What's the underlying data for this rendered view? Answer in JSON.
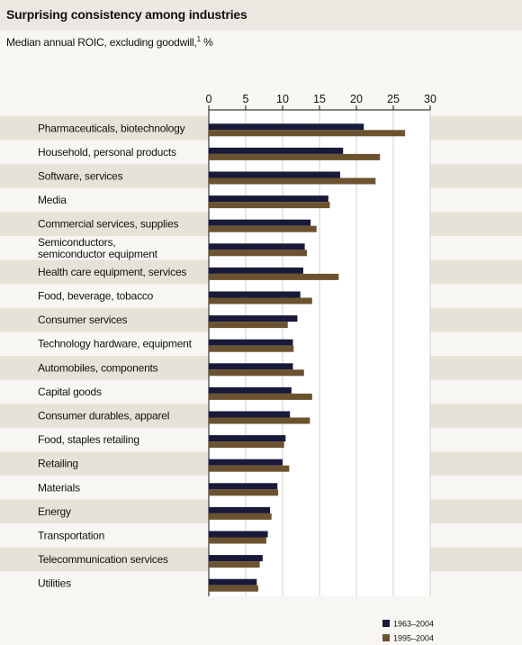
{
  "title": "Surprising consistency among industries",
  "subtitle": {
    "text": "Median annual ROIC, excluding goodwill,",
    "footnote_marker": "1",
    "unit": "%"
  },
  "colors": {
    "series1": "#191a3a",
    "series2": "#6b5330",
    "band": "#e7e2d8",
    "plot_bg": "#ffffff",
    "grid": "#d4d2cc"
  },
  "chart_data": {
    "type": "bar",
    "orientation": "horizontal",
    "title": "Surprising consistency among industries",
    "xlim": [
      0,
      30
    ],
    "xticks": [
      0,
      5,
      10,
      15,
      20,
      25,
      30
    ],
    "grid": true,
    "legend_position": "bottom-right",
    "categories": [
      "Pharmaceuticals, biotechnology",
      "Household, personal products",
      "Software, services",
      "Media",
      "Commercial services, supplies",
      "Semiconductors,\nsemiconductor equipment",
      "Health care equipment, services",
      "Food, beverage, tobacco",
      "Consumer services",
      "Technology hardware, equipment",
      "Automobiles, components",
      "Capital goods",
      "Consumer durables, apparel",
      "Food, staples retailing",
      "Retailing",
      "Materials",
      "Energy",
      "Transportation",
      "Telecommunication services",
      "Utilities"
    ],
    "series": [
      {
        "name": "1963–2004",
        "values": [
          21.0,
          18.2,
          17.8,
          16.2,
          13.8,
          13.0,
          12.8,
          12.4,
          12.0,
          11.4,
          11.4,
          11.2,
          11.0,
          10.4,
          10.0,
          9.3,
          8.3,
          8.0,
          7.3,
          6.5
        ]
      },
      {
        "name": "1995–2004",
        "values": [
          26.6,
          23.2,
          22.6,
          16.4,
          14.6,
          13.3,
          17.6,
          14.0,
          10.7,
          11.5,
          12.9,
          14.0,
          13.7,
          10.2,
          10.9,
          9.4,
          8.5,
          7.8,
          6.9,
          6.7
        ]
      }
    ]
  }
}
